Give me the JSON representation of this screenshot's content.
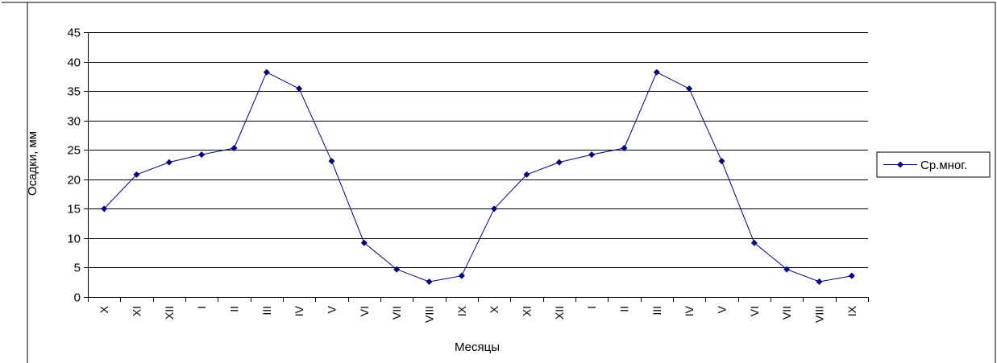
{
  "chart_data": {
    "type": "line",
    "title": "",
    "xlabel": "Месяцы",
    "ylabel": "Осадки, мм",
    "ylim": [
      0,
      45
    ],
    "yticks": [
      0,
      5,
      10,
      15,
      20,
      25,
      30,
      35,
      40,
      45
    ],
    "grid": true,
    "legend_position": "right",
    "categories": [
      "X",
      "XI",
      "XII",
      "I",
      "II",
      "III",
      "IV",
      "V",
      "VI",
      "VII",
      "VIII",
      "IX",
      "X",
      "XI",
      "XII",
      "I",
      "II",
      "III",
      "IV",
      "V",
      "VI",
      "VII",
      "VIII",
      "IX"
    ],
    "series": [
      {
        "name": "Ср.мног.",
        "color": "#000080",
        "marker": "diamond",
        "values": [
          15,
          20.8,
          22.9,
          24.2,
          25.3,
          38.2,
          35.4,
          23.1,
          9.2,
          4.7,
          2.6,
          3.6,
          15,
          20.8,
          22.9,
          24.2,
          25.3,
          38.2,
          35.4,
          23.1,
          9.2,
          4.7,
          2.6,
          3.6
        ]
      }
    ]
  }
}
